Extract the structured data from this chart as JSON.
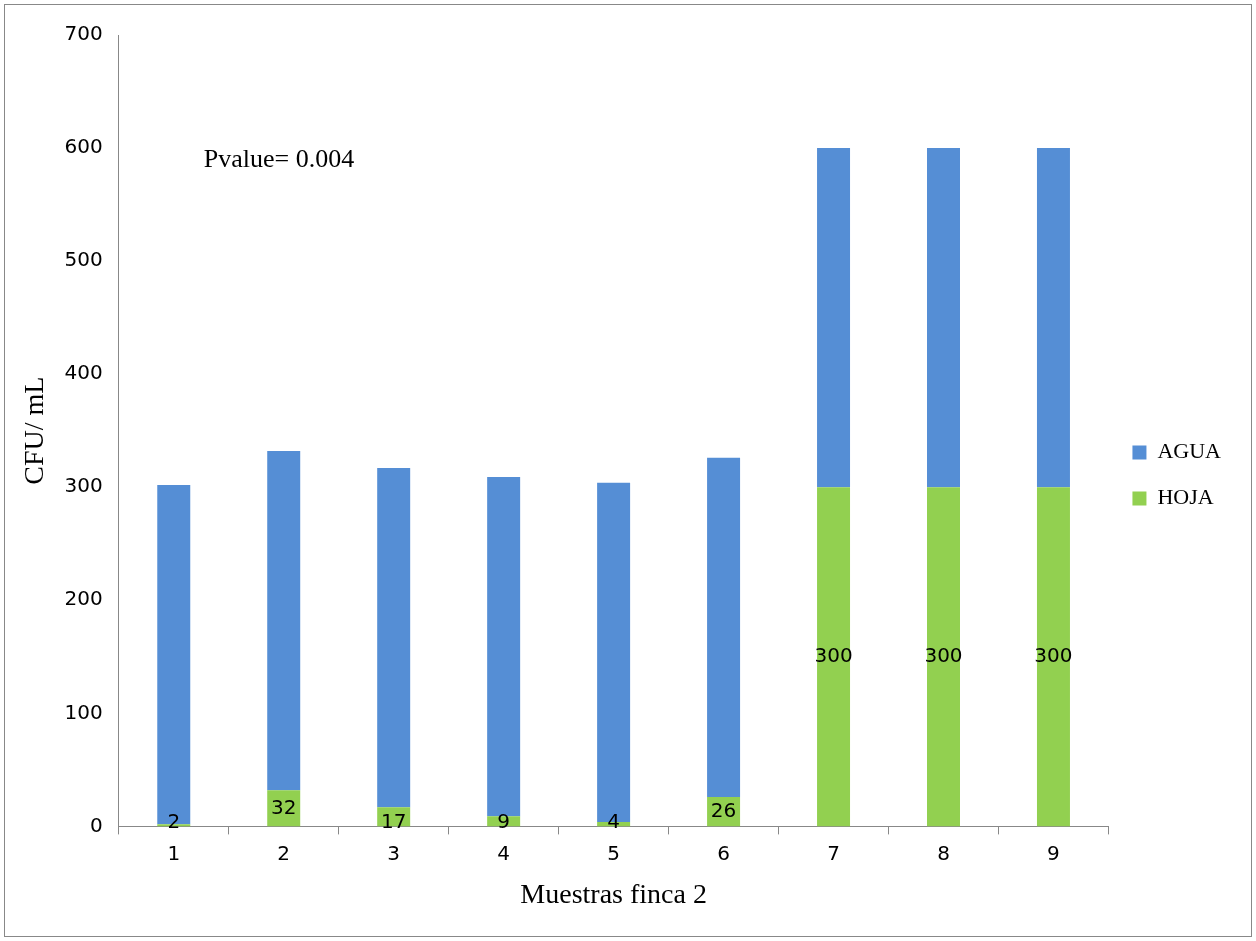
{
  "chart_data": {
    "type": "bar",
    "stacked": true,
    "xlabel": "Muestras finca 2",
    "ylabel": "CFU/ mL",
    "categories": [
      "1",
      "2",
      "3",
      "4",
      "5",
      "6",
      "7",
      "8",
      "9"
    ],
    "series": [
      {
        "name": "HOJA",
        "color": "#92d050",
        "values": [
          2,
          32,
          17,
          9,
          4,
          26,
          300,
          300,
          300
        ],
        "value_labels": [
          "2",
          "32",
          "17",
          "9",
          "4",
          "26",
          "300",
          "300",
          "300"
        ]
      },
      {
        "name": "AGUA",
        "color": "#558ed5",
        "values": [
          300,
          300,
          300,
          300,
          300,
          300,
          300,
          300,
          300
        ]
      }
    ],
    "ylim": [
      0,
      700
    ],
    "yticks": [
      0,
      100,
      200,
      300,
      400,
      500,
      600,
      700
    ],
    "grid": false,
    "legend": "right",
    "annotations": [
      "Pvalue= 0.004"
    ]
  }
}
